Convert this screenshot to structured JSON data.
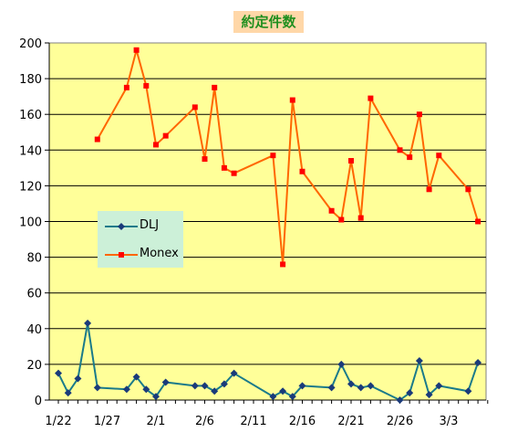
{
  "chart_data": {
    "type": "line",
    "title": "約定件数",
    "x_tick_labels": [
      "1/22",
      "1/27",
      "2/1",
      "2/6",
      "2/11",
      "2/16",
      "2/21",
      "2/26",
      "3/3"
    ],
    "x_unit": "day",
    "xlim": [
      0,
      44
    ],
    "ylim": [
      0,
      200
    ],
    "y_ticks": [
      0,
      20,
      40,
      60,
      80,
      100,
      120,
      140,
      160,
      180,
      200
    ],
    "grid": true,
    "legend": "left-middle",
    "series": [
      {
        "name": "DLJ",
        "color": "#1a7a8a",
        "marker": "diamond",
        "points": [
          [
            0,
            15
          ],
          [
            1,
            4
          ],
          [
            2,
            12
          ],
          [
            3,
            43
          ],
          [
            4,
            7
          ],
          [
            7,
            6
          ],
          [
            8,
            13
          ],
          [
            9,
            6
          ],
          [
            10,
            2
          ],
          [
            11,
            10
          ],
          [
            14,
            8
          ],
          [
            15,
            8
          ],
          [
            16,
            5
          ],
          [
            17,
            9
          ],
          [
            18,
            15
          ],
          [
            22,
            2
          ],
          [
            23,
            5
          ],
          [
            24,
            2
          ],
          [
            25,
            8
          ],
          [
            28,
            7
          ],
          [
            29,
            20
          ],
          [
            30,
            9
          ],
          [
            31,
            7
          ],
          [
            32,
            8
          ],
          [
            35,
            0
          ],
          [
            36,
            4
          ],
          [
            37,
            22
          ],
          [
            38,
            3
          ],
          [
            39,
            8
          ],
          [
            42,
            5
          ],
          [
            43,
            21
          ]
        ]
      },
      {
        "name": "Monex",
        "color": "#ff6600",
        "marker": "square",
        "points": [
          [
            4,
            146
          ],
          [
            7,
            175
          ],
          [
            8,
            196
          ],
          [
            9,
            176
          ],
          [
            10,
            143
          ],
          [
            11,
            148
          ],
          [
            14,
            164
          ],
          [
            15,
            135
          ],
          [
            16,
            175
          ],
          [
            17,
            130
          ],
          [
            18,
            127
          ],
          [
            22,
            137
          ],
          [
            23,
            76
          ],
          [
            24,
            168
          ],
          [
            25,
            128
          ],
          [
            28,
            106
          ],
          [
            29,
            101
          ],
          [
            30,
            134
          ],
          [
            31,
            102
          ],
          [
            32,
            169
          ],
          [
            35,
            140
          ],
          [
            36,
            136
          ],
          [
            37,
            160
          ],
          [
            38,
            118
          ],
          [
            39,
            137
          ],
          [
            42,
            118
          ],
          [
            43,
            100
          ]
        ]
      }
    ]
  }
}
